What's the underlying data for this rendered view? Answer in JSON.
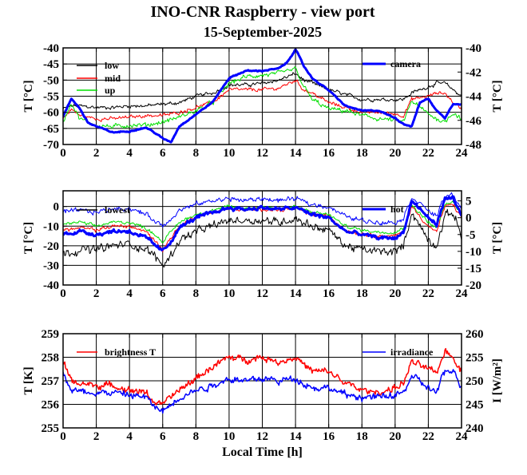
{
  "header": {
    "title": "INO-CNR Raspberry - view port",
    "date": "15-September-2025"
  },
  "chart_data": [
    {
      "type": "line",
      "panel": "top",
      "xlabel": "",
      "ylabel_left": "T [°C]",
      "ylabel_right": "T [°C]",
      "xlim": [
        0,
        24
      ],
      "xticks": [
        0,
        2,
        4,
        6,
        8,
        10,
        12,
        14,
        16,
        18,
        20,
        22,
        24
      ],
      "ylim_left": [
        -70,
        -40
      ],
      "yticks_left": [
        -70,
        -65,
        -60,
        -55,
        -50,
        -45,
        -40
      ],
      "ylim_right": [
        -48,
        -40
      ],
      "yticks_right": [
        -48,
        -46,
        -44,
        -42,
        -40
      ],
      "grid": true,
      "legend_left": [
        "low",
        "mid",
        "up"
      ],
      "legend_right": [
        "camera"
      ],
      "series": [
        {
          "name": "low",
          "color": "#000000",
          "axis": "left",
          "width": 1,
          "noise": 0.7,
          "x": [
            0,
            0.5,
            1,
            2,
            3,
            4,
            5,
            6,
            7,
            8,
            9,
            10,
            11,
            12,
            13,
            14,
            14.5,
            15,
            16,
            17,
            18,
            19,
            20,
            20.5,
            21,
            22,
            22.5,
            23,
            23.5,
            24
          ],
          "values": [
            -59,
            -58,
            -58,
            -58.5,
            -58.5,
            -58,
            -58,
            -57.5,
            -57,
            -55,
            -54,
            -51.5,
            -51.5,
            -51,
            -50,
            -48,
            -50,
            -51,
            -53,
            -54.5,
            -56,
            -56,
            -56,
            -56,
            -54,
            -52,
            -51,
            -51,
            -53,
            -55
          ]
        },
        {
          "name": "mid",
          "color": "#ff0000",
          "axis": "left",
          "width": 1,
          "noise": 0.7,
          "x": [
            0,
            0.5,
            1,
            2,
            3,
            4,
            5,
            6,
            7,
            8,
            9,
            10,
            11,
            12,
            13,
            14,
            14.5,
            15,
            16,
            17,
            18,
            19,
            20,
            20.5,
            21,
            22,
            22.5,
            23,
            23.5,
            24
          ],
          "values": [
            -62,
            -59,
            -61,
            -62,
            -62,
            -61.5,
            -61,
            -61,
            -60,
            -58.5,
            -57,
            -53,
            -53,
            -53,
            -52.5,
            -50,
            -53,
            -54,
            -57,
            -58.5,
            -60,
            -60,
            -60.5,
            -61,
            -56,
            -55,
            -54,
            -54,
            -57,
            -59
          ]
        },
        {
          "name": "up",
          "color": "#00e000",
          "axis": "left",
          "width": 1,
          "noise": 0.9,
          "x": [
            0,
            0.5,
            1,
            2,
            3,
            4,
            5,
            6,
            7,
            8,
            9,
            10,
            11,
            12,
            13,
            14,
            14.5,
            15,
            16,
            17,
            18,
            19,
            20,
            20.5,
            21,
            22,
            22.5,
            23,
            23.5,
            24
          ],
          "values": [
            -63,
            -57,
            -62,
            -64,
            -64.5,
            -64,
            -64,
            -63,
            -61.5,
            -59.5,
            -57,
            -51,
            -49,
            -48.5,
            -48,
            -46.5,
            -52,
            -56,
            -59,
            -59.5,
            -61,
            -62,
            -62.5,
            -63,
            -56.5,
            -60.5,
            -62,
            -63,
            -60,
            -62
          ]
        },
        {
          "name": "camera",
          "color": "#0000ff",
          "axis": "right",
          "width": 3,
          "noise": 0.06,
          "x": [
            0,
            0.5,
            1,
            1.5,
            2,
            3,
            4,
            5,
            5.5,
            6,
            6.5,
            7,
            8,
            9,
            10,
            10.5,
            11,
            12,
            13,
            13.5,
            14,
            14.5,
            15,
            16,
            17,
            18,
            19,
            20,
            20.5,
            21,
            21.5,
            22,
            22.5,
            23,
            23.5,
            24
          ],
          "values": [
            -45.7,
            -44.2,
            -45,
            -46.2,
            -46.5,
            -47,
            -46.9,
            -46.6,
            -47,
            -47.5,
            -47.8,
            -46.5,
            -45.5,
            -44.5,
            -42.5,
            -42.2,
            -41.9,
            -41.9,
            -41.7,
            -41.2,
            -40.1,
            -41.5,
            -42.5,
            -43.5,
            -44.8,
            -45.2,
            -45.2,
            -45.8,
            -46.3,
            -46.5,
            -44.5,
            -44.2,
            -45.2,
            -45.8,
            -44.6,
            -44.7
          ]
        }
      ]
    },
    {
      "type": "line",
      "panel": "middle",
      "xlabel": "",
      "ylabel_left": "T [°C]",
      "ylabel_right": "T [°C]",
      "xlim": [
        0,
        24
      ],
      "xticks": [
        0,
        2,
        4,
        6,
        8,
        10,
        12,
        14,
        16,
        18,
        20,
        22,
        24
      ],
      "ylim_left": [
        -40,
        8
      ],
      "yticks_left": [
        -40,
        -30,
        -20,
        -10,
        0
      ],
      "ylim_right": [
        -20,
        8
      ],
      "yticks_right": [
        -20,
        -15,
        -10,
        -5,
        0,
        5
      ],
      "grid": true,
      "legend_left": [
        "lowest"
      ],
      "legend_right": [
        "hot"
      ],
      "series": [
        {
          "name": "lowest",
          "color": "#000000",
          "axis": "left",
          "width": 1,
          "noise": 2.6,
          "x": [
            0,
            1,
            2,
            3,
            4,
            5,
            5.5,
            6,
            6.5,
            7,
            8,
            9,
            10,
            11,
            12,
            13,
            14,
            15,
            16,
            17,
            18,
            19,
            20,
            20.5,
            21,
            22,
            22.5,
            23,
            23.5,
            24
          ],
          "values": [
            -24,
            -22,
            -22,
            -20,
            -19,
            -22,
            -25,
            -30,
            -25,
            -17,
            -13,
            -10,
            -7,
            -7,
            -7,
            -8,
            -6,
            -10,
            -12,
            -20,
            -22,
            -23,
            -23,
            -20,
            -3,
            -17,
            -20,
            -5,
            -3,
            -15
          ]
        },
        {
          "name": "mid",
          "color": "#ff0000",
          "axis": "left",
          "width": 1,
          "noise": 1.2,
          "x": [
            0,
            1,
            2,
            3,
            4,
            5,
            5.5,
            6,
            6.5,
            7,
            8,
            9,
            10,
            11,
            12,
            13,
            14,
            15,
            16,
            17,
            18,
            19,
            20,
            20.5,
            21,
            22,
            22.5,
            23,
            23.5,
            24
          ],
          "values": [
            -12,
            -11,
            -12,
            -10,
            -10,
            -13,
            -17,
            -22,
            -16,
            -10,
            -5,
            -3,
            -1,
            -2,
            -1,
            -2,
            -1,
            -4,
            -5,
            -12,
            -14,
            -15,
            -15,
            -13,
            0,
            -10,
            -13,
            0,
            1,
            -6
          ]
        },
        {
          "name": "up",
          "color": "#00e000",
          "axis": "left",
          "width": 1,
          "noise": 1.0,
          "x": [
            0,
            1,
            2,
            3,
            4,
            5,
            5.5,
            6,
            6.5,
            7,
            8,
            9,
            10,
            11,
            12,
            13,
            14,
            15,
            16,
            17,
            18,
            19,
            20,
            20.5,
            21,
            22,
            22.5,
            23,
            23.5,
            24
          ],
          "values": [
            -9,
            -8,
            -10,
            -8,
            -8,
            -11,
            -14,
            -18,
            -13,
            -8,
            -4,
            -2,
            0,
            -1,
            0,
            -1,
            0,
            -3,
            -4,
            -10,
            -12,
            -13,
            -13,
            -11,
            1,
            -8,
            -11,
            1,
            2,
            -4
          ]
        },
        {
          "name": "hot",
          "color": "#0000ff",
          "axis": "right",
          "width": 3,
          "noise": 0.7,
          "x": [
            0,
            1,
            2,
            3,
            4,
            5,
            5.5,
            6,
            6.5,
            7,
            8,
            9,
            10,
            11,
            12,
            13,
            14,
            15,
            16,
            17,
            18,
            19,
            20,
            20.5,
            21,
            22,
            22.5,
            23,
            23.5,
            24
          ],
          "values": [
            -5,
            -4,
            -5,
            -4,
            -4,
            -6,
            -8,
            -10,
            -7,
            -3,
            0,
            1.5,
            3,
            2.5,
            3,
            2.5,
            3,
            1,
            0,
            -4,
            -5,
            -6,
            -6,
            -4.5,
            5,
            0,
            -2,
            5.5,
            6,
            0.5
          ]
        },
        {
          "name": "",
          "color": "#0000ff",
          "axis": "left",
          "width": 1,
          "noise": 1.5,
          "x": [
            0,
            1,
            2,
            3,
            4,
            5,
            5.5,
            6,
            6.5,
            7,
            8,
            9,
            10,
            11,
            12,
            13,
            14,
            15,
            16,
            17,
            18,
            19,
            20,
            20.5,
            21,
            22,
            22.5,
            23,
            23.5,
            24
          ],
          "values": [
            -3,
            -2,
            -3,
            -1,
            -1,
            -4,
            -7,
            -10,
            -6,
            -2,
            1,
            3,
            4,
            3,
            4,
            3,
            4,
            1,
            0,
            -5,
            -7,
            -8,
            -8,
            -6,
            5,
            -2,
            -5,
            5,
            6,
            -1
          ]
        }
      ]
    },
    {
      "type": "line",
      "panel": "bottom",
      "xlabel": "Local Time [h]",
      "ylabel_left": "T [K]",
      "ylabel_right": "I [W/m²]",
      "xlim": [
        0,
        24
      ],
      "xticks": [
        0,
        2,
        4,
        6,
        8,
        10,
        12,
        14,
        16,
        18,
        20,
        22,
        24
      ],
      "ylim_left": [
        255,
        259
      ],
      "yticks_left": [
        255,
        256,
        257,
        258,
        259
      ],
      "ylim_right": [
        240,
        260
      ],
      "yticks_right": [
        240,
        245,
        250,
        255,
        260
      ],
      "grid": true,
      "legend_left": [
        "brightness T"
      ],
      "legend_right": [
        "irradiance"
      ],
      "series": [
        {
          "name": "brightness T",
          "color": "#ff0000",
          "axis": "left",
          "width": 1.5,
          "noise": 0.17,
          "x": [
            0,
            0.5,
            1,
            2,
            3,
            4,
            5,
            5.5,
            6,
            6.5,
            7,
            8,
            9,
            10,
            11,
            12,
            13,
            14,
            15,
            16,
            17,
            18,
            19,
            20,
            20.5,
            21,
            22,
            22.5,
            23,
            23.5,
            24
          ],
          "values": [
            257.8,
            257,
            256.9,
            256.8,
            256.8,
            256.6,
            256.5,
            256.1,
            256,
            256.3,
            256.6,
            257.1,
            257.6,
            258,
            257.9,
            258,
            257.8,
            258,
            257.4,
            257.4,
            256.9,
            256.6,
            256.5,
            256.7,
            256.9,
            257.8,
            257.5,
            257.3,
            258.3,
            258,
            257.4
          ]
        },
        {
          "name": "irradiance",
          "color": "#0000ff",
          "axis": "right",
          "width": 1.5,
          "noise": 0.9,
          "x": [
            0,
            0.5,
            1,
            2,
            3,
            4,
            5,
            5.5,
            6,
            6.5,
            7,
            8,
            9,
            10,
            11,
            12,
            13,
            14,
            15,
            16,
            17,
            18,
            19,
            20,
            20.5,
            21,
            22,
            22.5,
            23,
            23.5,
            24
          ],
          "values": [
            252,
            248,
            247.8,
            247.5,
            247.5,
            247,
            246.5,
            244.5,
            243.5,
            245,
            246.5,
            248,
            249,
            250.5,
            250,
            250.5,
            250,
            250.5,
            248.5,
            248.5,
            247,
            246.5,
            246.5,
            247,
            247.5,
            251,
            248.5,
            247.5,
            252,
            252,
            249
          ]
        }
      ]
    }
  ]
}
